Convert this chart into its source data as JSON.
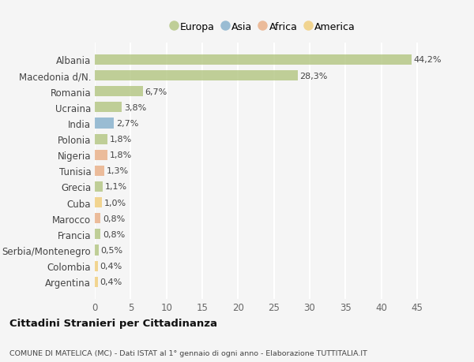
{
  "categories": [
    "Albania",
    "Macedonia d/N.",
    "Romania",
    "Ucraina",
    "India",
    "Polonia",
    "Nigeria",
    "Tunisia",
    "Grecia",
    "Cuba",
    "Marocco",
    "Francia",
    "Serbia/Montenegro",
    "Colombia",
    "Argentina"
  ],
  "values": [
    44.2,
    28.3,
    6.7,
    3.8,
    2.7,
    1.8,
    1.8,
    1.3,
    1.1,
    1.0,
    0.8,
    0.8,
    0.5,
    0.4,
    0.4
  ],
  "labels": [
    "44,2%",
    "28,3%",
    "6,7%",
    "3,8%",
    "2,7%",
    "1,8%",
    "1,8%",
    "1,3%",
    "1,1%",
    "1,0%",
    "0,8%",
    "0,8%",
    "0,5%",
    "0,4%",
    "0,4%"
  ],
  "continents": [
    "Europa",
    "Europa",
    "Europa",
    "Europa",
    "Asia",
    "Europa",
    "Africa",
    "Africa",
    "Europa",
    "America",
    "Africa",
    "Europa",
    "Europa",
    "America",
    "America"
  ],
  "colors": {
    "Europa": "#adc178",
    "Asia": "#7baac8",
    "Africa": "#e8a87c",
    "America": "#f0c96e"
  },
  "xlim": [
    0,
    47
  ],
  "xticks": [
    0,
    5,
    10,
    15,
    20,
    25,
    30,
    35,
    40,
    45
  ],
  "title": "Cittadini Stranieri per Cittadinanza",
  "subtitle": "COMUNE DI MATELICA (MC) - Dati ISTAT al 1° gennaio di ogni anno - Elaborazione TUTTITALIA.IT",
  "bg_color": "#f5f5f5",
  "bar_alpha": 0.75,
  "grid_color": "#ffffff",
  "label_fontsize": 8,
  "ytick_fontsize": 8.5,
  "xtick_fontsize": 8.5,
  "legend_order": [
    "Europa",
    "Asia",
    "Africa",
    "America"
  ]
}
